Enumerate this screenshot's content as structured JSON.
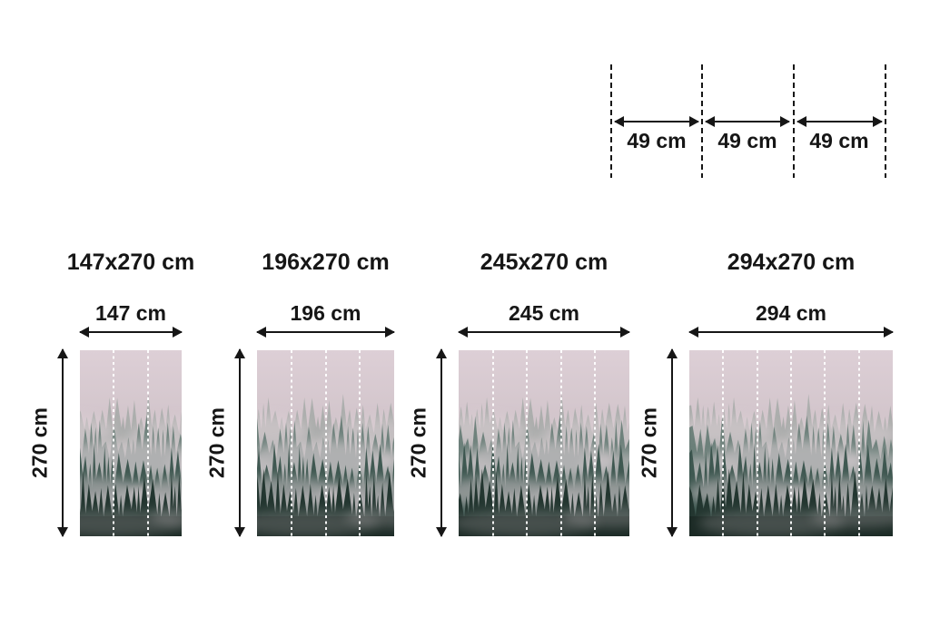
{
  "page": {
    "background": "#ffffff",
    "text_color": "#161616"
  },
  "roll_guide": {
    "description": "wallpaper panel width guide with dashed cut lines",
    "labels": [
      "49 cm",
      "49 cm",
      "49 cm"
    ]
  },
  "products": [
    {
      "title": "147x270 cm",
      "width_label": "147 cm",
      "height_label": "270 cm",
      "panels": 3
    },
    {
      "title": "196x270 cm",
      "width_label": "196 cm",
      "height_label": "270 cm",
      "panels": 4
    },
    {
      "title": "245x270 cm",
      "width_label": "245 cm",
      "height_label": "270 cm",
      "panels": 5
    },
    {
      "title": "294x270 cm",
      "width_label": "294 cm",
      "height_label": "270 cm",
      "panels": 6
    }
  ],
  "photo": {
    "subject": "foggy mountain conifer forest mural",
    "palette": {
      "sky_top": "#ddcfd6",
      "sky_mid": "#d0c3c9",
      "sky_bottom": "#bfb3b9",
      "fog": "#ded2d7",
      "trees_far": "#8c9a94",
      "trees_mid": "#5c746d",
      "trees_near": "#39534c",
      "trees_front": "#233630",
      "trees_deep": "#1b2a25",
      "divider": "#ffffff"
    }
  }
}
